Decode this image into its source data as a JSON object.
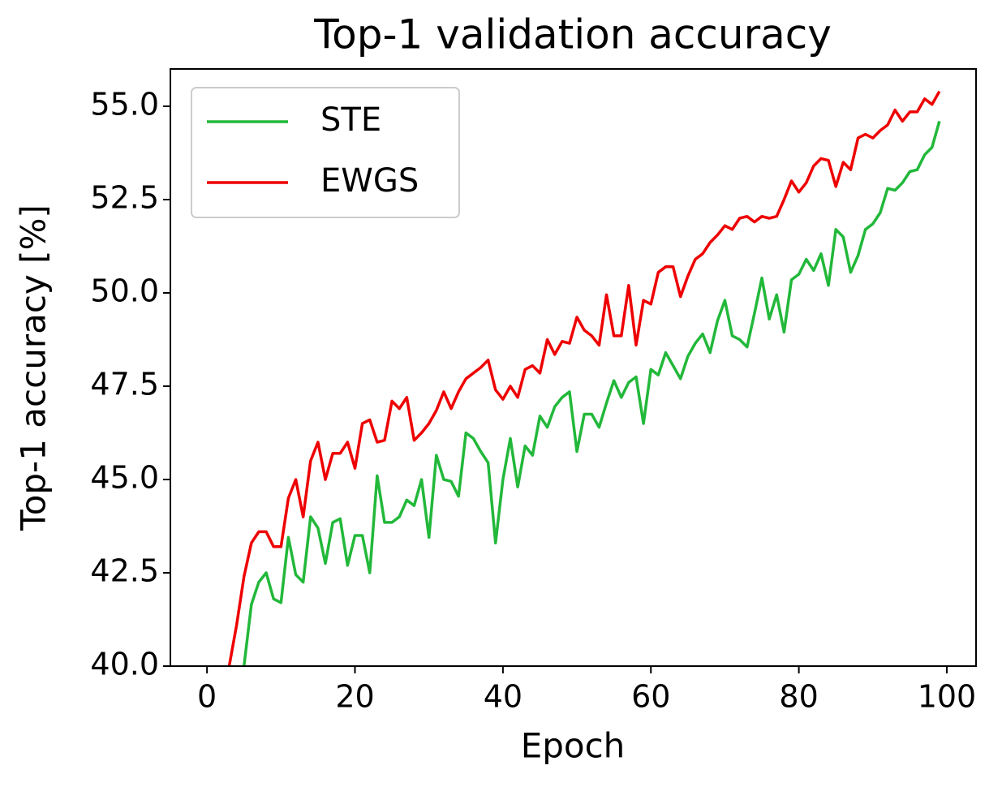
{
  "chart_data": {
    "type": "line",
    "title": "Top-1 validation accuracy",
    "xlabel": "Epoch",
    "ylabel": "Top-1 accuracy [%]",
    "x": [
      0,
      1,
      2,
      3,
      4,
      5,
      6,
      7,
      8,
      9,
      10,
      11,
      12,
      13,
      14,
      15,
      16,
      17,
      18,
      19,
      20,
      21,
      22,
      23,
      24,
      25,
      26,
      27,
      28,
      29,
      30,
      31,
      32,
      33,
      34,
      35,
      36,
      37,
      38,
      39,
      40,
      41,
      42,
      43,
      44,
      45,
      46,
      47,
      48,
      49,
      50,
      51,
      52,
      53,
      54,
      55,
      56,
      57,
      58,
      59,
      60,
      61,
      62,
      63,
      64,
      65,
      66,
      67,
      68,
      69,
      70,
      71,
      72,
      73,
      74,
      75,
      76,
      77,
      78,
      79,
      80,
      81,
      82,
      83,
      84,
      85,
      86,
      87,
      88,
      89,
      90,
      91,
      92,
      93,
      94,
      95,
      96,
      97,
      98,
      99
    ],
    "series": [
      {
        "name": "STE",
        "color": "#22b83a",
        "values": [
          null,
          null,
          null,
          null,
          null,
          40.0,
          41.65,
          42.25,
          42.5,
          41.8,
          41.7,
          43.45,
          42.45,
          42.25,
          44.0,
          43.7,
          42.75,
          43.85,
          43.95,
          42.7,
          43.5,
          43.5,
          42.5,
          45.1,
          43.85,
          43.85,
          44.0,
          44.45,
          44.3,
          45.0,
          43.45,
          45.65,
          45.0,
          44.95,
          44.55,
          46.25,
          46.1,
          45.75,
          45.45,
          43.3,
          45.0,
          46.1,
          44.8,
          45.9,
          45.65,
          46.7,
          46.4,
          46.95,
          47.2,
          47.35,
          45.75,
          46.75,
          46.75,
          46.4,
          47.05,
          47.65,
          47.2,
          47.6,
          47.75,
          46.5,
          47.95,
          47.8,
          48.4,
          48.05,
          47.7,
          48.3,
          48.65,
          48.9,
          48.4,
          49.25,
          49.8,
          48.85,
          48.75,
          48.55,
          49.45,
          50.4,
          49.3,
          49.95,
          48.95,
          50.35,
          50.5,
          50.9,
          50.6,
          51.05,
          50.2,
          51.7,
          51.5,
          50.55,
          51.0,
          51.7,
          51.85,
          52.15,
          52.8,
          52.75,
          52.95,
          53.25,
          53.3,
          53.7,
          53.9,
          54.6
        ]
      },
      {
        "name": "EWGS",
        "color": "#ee0000",
        "values": [
          null,
          null,
          null,
          40.0,
          41.1,
          42.4,
          43.3,
          43.6,
          43.6,
          43.2,
          43.2,
          44.5,
          45.0,
          44.0,
          45.5,
          46.0,
          45.0,
          45.7,
          45.7,
          46.0,
          45.3,
          46.5,
          46.6,
          46.0,
          46.05,
          47.1,
          46.9,
          47.2,
          46.05,
          46.25,
          46.5,
          46.85,
          47.35,
          46.9,
          47.35,
          47.7,
          47.85,
          48.0,
          48.2,
          47.4,
          47.15,
          47.5,
          47.2,
          47.95,
          48.05,
          47.85,
          48.75,
          48.35,
          48.7,
          48.65,
          49.35,
          49.0,
          48.85,
          48.6,
          49.95,
          48.85,
          48.85,
          50.2,
          48.6,
          49.8,
          49.7,
          50.55,
          50.7,
          50.7,
          49.9,
          50.45,
          50.9,
          51.05,
          51.35,
          51.55,
          51.8,
          51.7,
          52.0,
          52.05,
          51.9,
          52.05,
          52.0,
          52.05,
          52.5,
          53.0,
          52.7,
          52.95,
          53.4,
          53.6,
          53.55,
          52.85,
          53.5,
          53.3,
          54.15,
          54.25,
          54.15,
          54.35,
          54.5,
          54.9,
          54.6,
          54.85,
          54.85,
          55.2,
          55.05,
          55.4
        ]
      }
    ],
    "xlim": [
      -4.95,
      103.95
    ],
    "ylim": [
      40,
      56
    ],
    "xticks": [
      0,
      20,
      40,
      60,
      80,
      100
    ],
    "yticks": [
      {
        "value": 40,
        "label": "40.0"
      },
      42.5,
      {
        "value": 45,
        "label": "45.0"
      },
      47.5,
      {
        "value": 50,
        "label": "50.0"
      },
      52.5,
      {
        "value": 55,
        "label": "55.0"
      }
    ],
    "legend": "upper left"
  }
}
